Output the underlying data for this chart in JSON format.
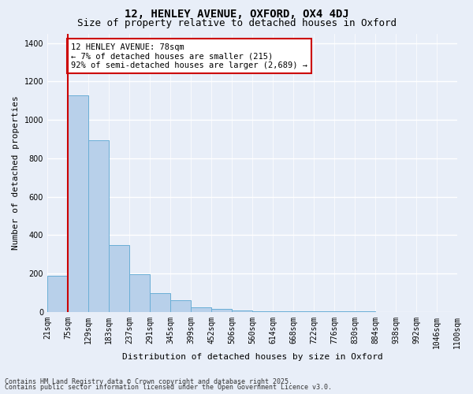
{
  "title1": "12, HENLEY AVENUE, OXFORD, OX4 4DJ",
  "title2": "Size of property relative to detached houses in Oxford",
  "xlabel": "Distribution of detached houses by size in Oxford",
  "ylabel": "Number of detached properties",
  "bar_values": [
    190,
    1130,
    895,
    350,
    195,
    100,
    60,
    25,
    15,
    10,
    5,
    4,
    3,
    3,
    2,
    2,
    1,
    1,
    1,
    1
  ],
  "bar_labels": [
    "21sqm",
    "75sqm",
    "129sqm",
    "183sqm",
    "237sqm",
    "291sqm",
    "345sqm",
    "399sqm",
    "452sqm",
    "506sqm",
    "560sqm",
    "614sqm",
    "668sqm",
    "722sqm",
    "776sqm",
    "830sqm",
    "884sqm",
    "938sqm",
    "992sqm",
    "1046sqm",
    "1100sqm"
  ],
  "bar_color": "#b8d0ea",
  "bar_edge_color": "#6aaed6",
  "ylim": [
    0,
    1450
  ],
  "vline_x_index": 1,
  "vline_color": "#cc0000",
  "annotation_text": "12 HENLEY AVENUE: 78sqm\n← 7% of detached houses are smaller (215)\n92% of semi-detached houses are larger (2,689) →",
  "annotation_box_facecolor": "#ffffff",
  "annotation_box_edgecolor": "#cc0000",
  "footer1": "Contains HM Land Registry data © Crown copyright and database right 2025.",
  "footer2": "Contains public sector information licensed under the Open Government Licence v3.0.",
  "bg_color": "#e8eef8",
  "grid_color": "#ffffff",
  "title1_fontsize": 10,
  "title2_fontsize": 9,
  "tick_fontsize": 7,
  "ylabel_fontsize": 8,
  "xlabel_fontsize": 8,
  "annot_fontsize": 7.5,
  "footer_fontsize": 6
}
